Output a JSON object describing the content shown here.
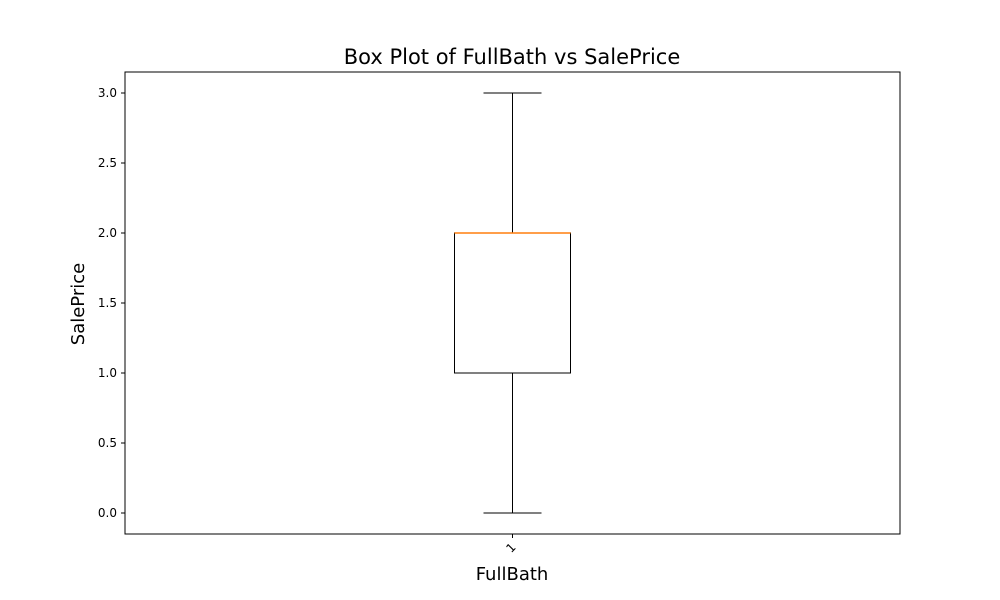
{
  "chart_data": {
    "type": "box",
    "title": "Box Plot of FullBath vs SalePrice",
    "xlabel": "FullBath",
    "ylabel": "SalePrice",
    "ylim": [
      -0.15,
      3.15
    ],
    "yticks": [
      "0.0",
      "0.5",
      "1.0",
      "1.5",
      "2.0",
      "2.5",
      "3.0"
    ],
    "categories": [
      "1"
    ],
    "boxes": [
      {
        "category": "1",
        "whisker_low": 0.0,
        "q1": 1.0,
        "median": 2.0,
        "q3": 2.0,
        "whisker_high": 3.0
      }
    ],
    "grid": false,
    "colors": {
      "box": "#000000",
      "median": "#ff7f0e",
      "whisker": "#000000"
    }
  }
}
